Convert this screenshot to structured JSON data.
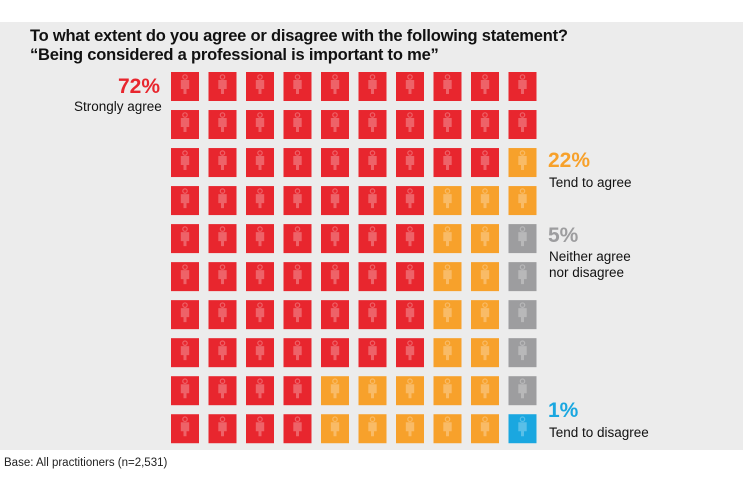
{
  "title": {
    "line1": "To what extent do you agree or disagree with the following statement?",
    "line2": "“Being considered a professional is important to me”"
  },
  "footnote": "Base: All practitioners (n=2,531)",
  "colors": {
    "strongly_agree": "#e8262e",
    "tend_to_agree": "#f7a12b",
    "neither": "#9d9d9f",
    "tend_to_disagree": "#1aa7e0",
    "background": "#ececec",
    "icon_overlay": "rgba(255,255,255,0.28)"
  },
  "icon": "person-icon",
  "chart_data": {
    "type": "waffle",
    "grid": {
      "rows": 10,
      "cols": 10
    },
    "title": "To what extent do you agree or disagree with the following statement? “Being considered a professional is important to me”",
    "series": [
      {
        "name": "Strongly agree",
        "percent_label": "72%",
        "value": 72,
        "color": "#e8262e"
      },
      {
        "name": "Tend to agree",
        "percent_label": "22%",
        "value": 22,
        "color": "#f7a12b"
      },
      {
        "name": "Neither agree nor disagree",
        "label_lines": [
          "Neither agree",
          "nor disagree"
        ],
        "percent_label": "5%",
        "value": 5,
        "color": "#9d9d9f"
      },
      {
        "name": "Tend to disagree",
        "percent_label": "1%",
        "value": 1,
        "color": "#1aa7e0"
      }
    ],
    "base": "Base: All practitioners (n=2,531)"
  }
}
